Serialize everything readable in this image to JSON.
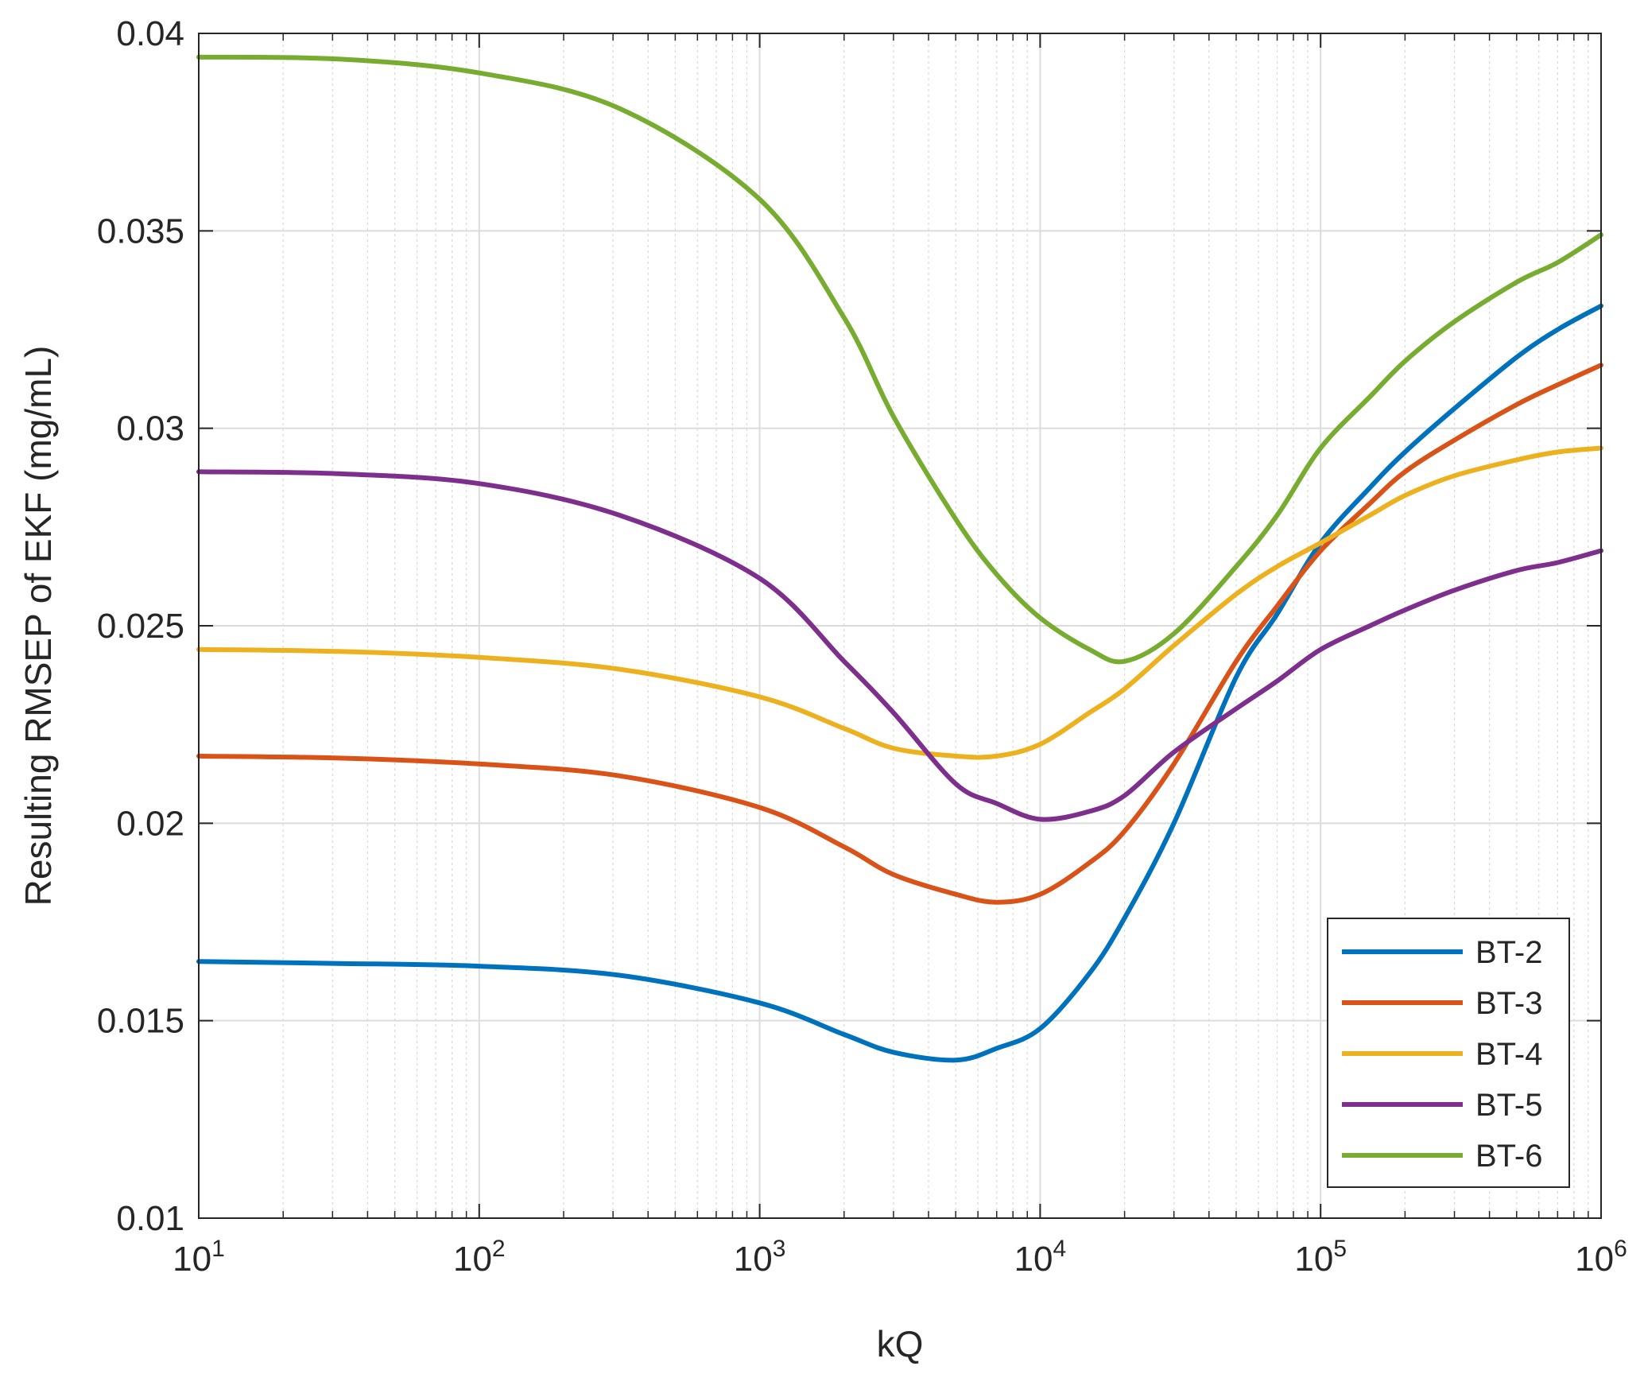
{
  "chart_data": {
    "type": "line",
    "title": "",
    "xlabel": "kQ",
    "ylabel": "Resulting RMSEP of EKF (mg/mL)",
    "xscale": "log",
    "xlim": [
      10,
      1000000
    ],
    "ylim": [
      0.01,
      0.04
    ],
    "grid": true,
    "legend_position": "bottom-right",
    "x_ticks": [
      10,
      100,
      1000,
      10000,
      100000,
      1000000
    ],
    "x_tick_labels": [
      {
        "base": "10",
        "exp": "1"
      },
      {
        "base": "10",
        "exp": "2"
      },
      {
        "base": "10",
        "exp": "3"
      },
      {
        "base": "10",
        "exp": "4"
      },
      {
        "base": "10",
        "exp": "5"
      },
      {
        "base": "10",
        "exp": "6"
      }
    ],
    "y_ticks": [
      0.01,
      0.015,
      0.02,
      0.025,
      0.03,
      0.035,
      0.04
    ],
    "y_tick_labels": [
      "0.01",
      "0.015",
      "0.02",
      "0.025",
      "0.03",
      "0.035",
      "0.04"
    ],
    "x": [
      10,
      31.6,
      100,
      316,
      1000,
      2000,
      3000,
      5000,
      7000,
      10000,
      15000,
      20000,
      30000,
      50000,
      70000,
      100000,
      150000,
      200000,
      300000,
      500000,
      700000,
      1000000
    ],
    "series": [
      {
        "name": "BT-2",
        "color": "#0072BD",
        "values": [
          0.0165,
          0.01645,
          0.01638,
          0.01615,
          0.01545,
          0.01465,
          0.0142,
          0.014,
          0.0143,
          0.0148,
          0.0162,
          0.0176,
          0.02,
          0.0237,
          0.0253,
          0.0271,
          0.0285,
          0.0294,
          0.0305,
          0.0318,
          0.0325,
          0.0331
        ]
      },
      {
        "name": "BT-3",
        "color": "#D95319",
        "values": [
          0.0217,
          0.02165,
          0.0215,
          0.0212,
          0.0204,
          0.0194,
          0.0187,
          0.0182,
          0.018,
          0.0182,
          0.019,
          0.0198,
          0.0215,
          0.0241,
          0.0255,
          0.0269,
          0.0281,
          0.0289,
          0.0297,
          0.0306,
          0.0311,
          0.0316
        ]
      },
      {
        "name": "BT-4",
        "color": "#EDB120",
        "values": [
          0.0244,
          0.02435,
          0.0242,
          0.0239,
          0.0232,
          0.0224,
          0.0219,
          0.0217,
          0.0217,
          0.022,
          0.0228,
          0.0234,
          0.0245,
          0.0258,
          0.0265,
          0.0271,
          0.0278,
          0.0283,
          0.0288,
          0.0292,
          0.0294,
          0.0295
        ]
      },
      {
        "name": "BT-5",
        "color": "#7E2F8E",
        "values": [
          0.0289,
          0.02885,
          0.0286,
          0.0278,
          0.0262,
          0.0241,
          0.0228,
          0.021,
          0.0205,
          0.0201,
          0.0203,
          0.0207,
          0.0218,
          0.0229,
          0.0236,
          0.0244,
          0.025,
          0.0254,
          0.0259,
          0.0264,
          0.0266,
          0.0269
        ]
      },
      {
        "name": "BT-6",
        "color": "#77AC30",
        "values": [
          0.0394,
          0.03935,
          0.039,
          0.0381,
          0.0358,
          0.0328,
          0.0303,
          0.0277,
          0.0263,
          0.0252,
          0.0244,
          0.0241,
          0.0248,
          0.0265,
          0.0278,
          0.0295,
          0.0308,
          0.0317,
          0.0327,
          0.0337,
          0.0342,
          0.0349
        ]
      }
    ]
  }
}
